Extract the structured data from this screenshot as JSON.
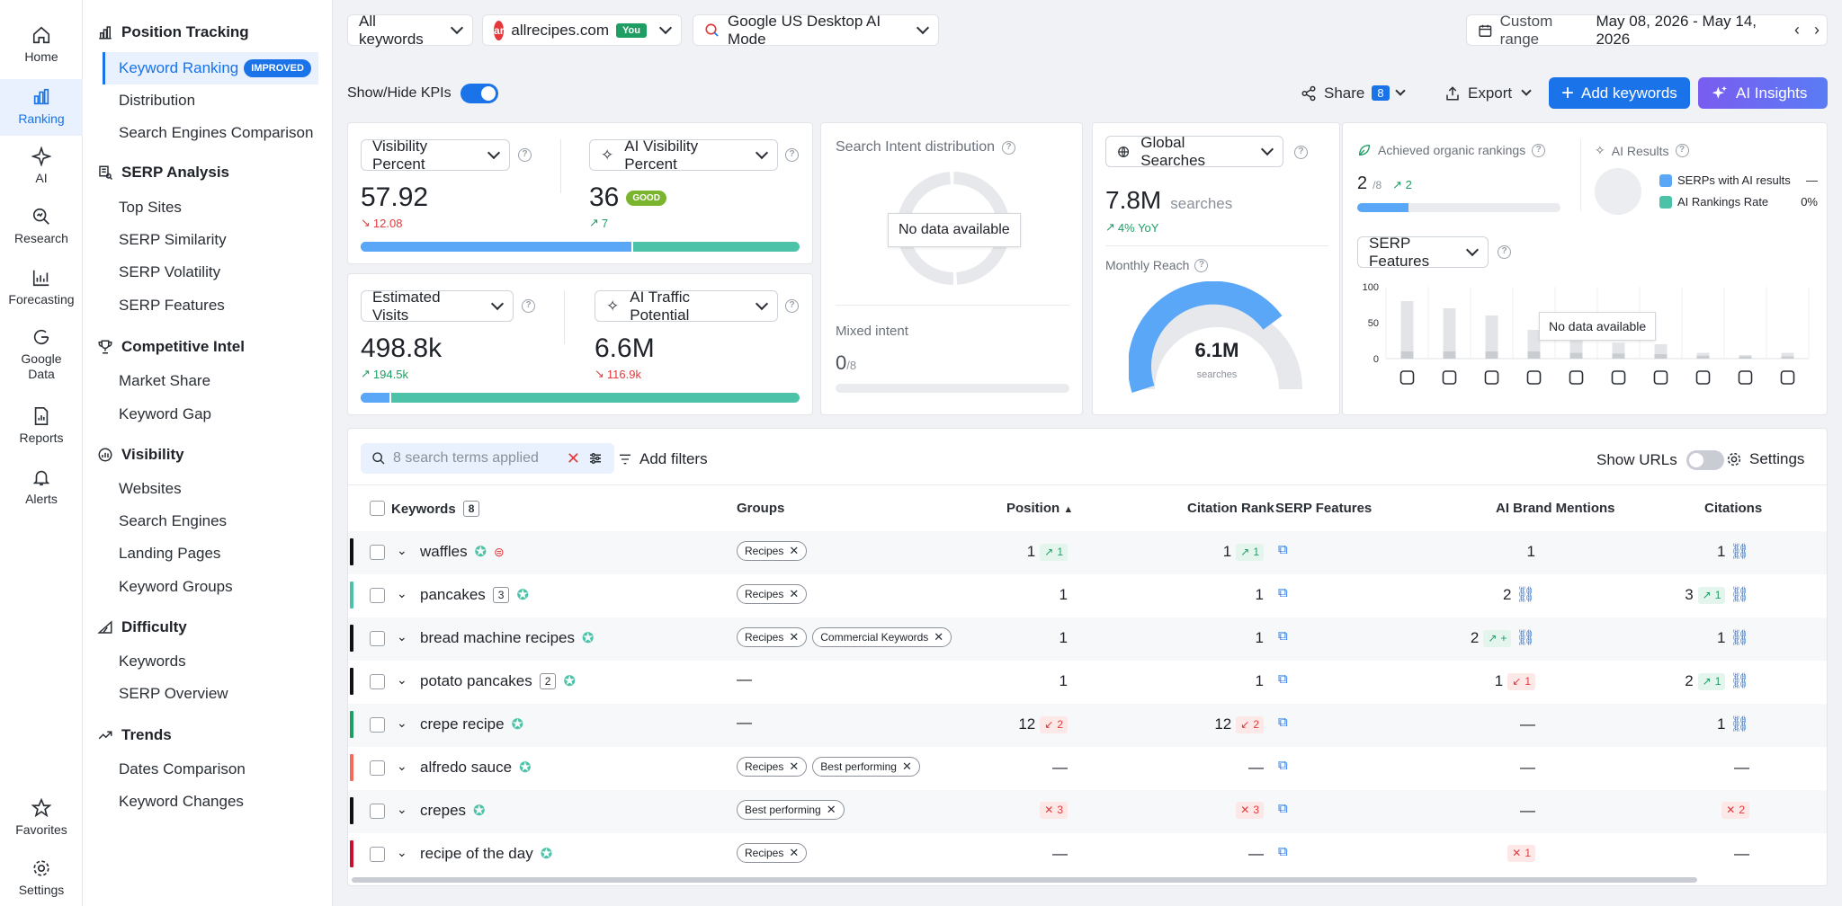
{
  "rail": [
    {
      "label": "Home",
      "icon": "home-icon"
    },
    {
      "label": "Ranking",
      "icon": "bar-chart-icon"
    },
    {
      "label": "AI",
      "icon": "sparkle-icon"
    },
    {
      "label": "Research",
      "icon": "magnify-chart-icon"
    },
    {
      "label": "Forecasting",
      "icon": "forecast-icon"
    },
    {
      "label": "Google Data",
      "icon": "google-icon"
    },
    {
      "label": "Reports",
      "icon": "report-icon"
    },
    {
      "label": "Alerts",
      "icon": "bell-icon"
    },
    {
      "label": "Favorites",
      "icon": "star-icon"
    },
    {
      "label": "Settings",
      "icon": "gear-icon"
    }
  ],
  "sidebar": {
    "position_tracking": {
      "title": "Position Tracking",
      "items": [
        "Keyword Ranking",
        "Distribution",
        "Search Engines Comparison"
      ],
      "badge": "IMPROVED"
    },
    "serp_analysis": {
      "title": "SERP Analysis",
      "items": [
        "Top Sites",
        "SERP Similarity",
        "SERP Volatility",
        "SERP Features"
      ]
    },
    "competitive": {
      "title": "Competitive Intel",
      "items": [
        "Market Share",
        "Keyword Gap"
      ]
    },
    "visibility": {
      "title": "Visibility",
      "items": [
        "Websites",
        "Search Engines",
        "Landing Pages",
        "Keyword Groups"
      ]
    },
    "difficulty": {
      "title": "Difficulty",
      "items": [
        "Keywords",
        "SERP Overview"
      ]
    },
    "trends": {
      "title": "Trends",
      "items": [
        "Dates Comparison",
        "Keyword Changes"
      ]
    }
  },
  "topbar": {
    "keywords_filter": "All keywords",
    "site": "allrecipes.com",
    "site_badge": "You",
    "site_logo": "ar",
    "engine": "Google US Desktop AI Mode",
    "range_label": "Custom range",
    "range_value": "May 08, 2026 - May 14, 2026"
  },
  "toolbar": {
    "kpi_toggle": "Show/Hide KPIs",
    "share": "Share",
    "share_count": "8",
    "export": "Export",
    "add_keywords": "Add keywords",
    "ai_insights": "AI Insights"
  },
  "kpi": {
    "visibility": {
      "label": "Visibility Percent",
      "value": "57.92",
      "delta": "12.08"
    },
    "ai_visibility": {
      "label": "AI Visibility Percent",
      "value": "36",
      "badge": "GOOD",
      "delta": "7"
    },
    "visits": {
      "label": "Estimated Visits",
      "value": "498.8k",
      "delta": "194.5k"
    },
    "ai_traffic": {
      "label": "AI Traffic Potential",
      "value": "6.6M",
      "delta": "116.9k"
    },
    "visibility_bar_fraction": 0.62,
    "visits_bar_fraction": 0.07
  },
  "intent": {
    "title": "Search Intent distribution",
    "no_data": "No data available",
    "mixed_label": "Mixed intent",
    "mixed_value": "0",
    "mixed_total": "/8"
  },
  "searches": {
    "selector": "Global Searches",
    "value": "7.8M",
    "unit": "searches",
    "yoy": "4% YoY",
    "reach_label": "Monthly Reach",
    "gauge_value": "6.1M",
    "gauge_unit": "searches"
  },
  "organic": {
    "label": "Achieved organic rankings",
    "value": "2",
    "total": "/8",
    "delta": "2",
    "ai_results_label": "AI Results",
    "legend_serps": "SERPs with AI results",
    "legend_serps_value": "—",
    "legend_rate": "AI Rankings Rate",
    "legend_rate_value": "0%",
    "colors": {
      "serps": "#5aa6f7",
      "rate": "#4cc3a8"
    }
  },
  "serp_features": {
    "selector": "SERP Features",
    "no_data": "No data available",
    "y_ticks": [
      "100",
      "50",
      "0"
    ],
    "icons": [
      "ai-overview-icon",
      "link-icon",
      "news-icon",
      "image-icon",
      "twitter-icon",
      "reviews-icon",
      "local-pin-icon",
      "carousel-icon",
      "video-icon",
      "table-icon"
    ]
  },
  "chart_data": {
    "type": "bar",
    "title": "SERP Features",
    "ylim": [
      0,
      100
    ],
    "categories": [
      "ai-overview",
      "link",
      "news",
      "image",
      "twitter",
      "reviews",
      "local-pin",
      "carousel",
      "video",
      "table"
    ],
    "series": [
      {
        "values": [
          80,
          70,
          60,
          40,
          30,
          22,
          20,
          8,
          5,
          8
        ]
      },
      {
        "values": [
          10,
          10,
          10,
          10,
          8,
          7,
          6,
          4,
          3,
          3
        ]
      }
    ]
  },
  "filters": {
    "search_terms": "8 search terms applied",
    "add_filters": "Add filters",
    "show_urls": "Show URLs",
    "settings": "Settings"
  },
  "table": {
    "headers": {
      "keywords": "Keywords",
      "keywords_count": "8",
      "groups": "Groups",
      "position": "Position",
      "citation_rank": "Citation Rank",
      "serp_features": "SERP Features",
      "brand_mentions": "AI Brand Mentions",
      "citations": "Citations"
    },
    "rows": [
      {
        "keyword": "waffles",
        "count": "",
        "color": "#111",
        "tags": [
          "Recipes"
        ],
        "pos": "1",
        "pos_chip": "1",
        "pos_dir": "up",
        "cit": "1",
        "cit_chip": "1",
        "cit_dir": "up",
        "brand": "1",
        "brand_chip": "",
        "brand_dir": "",
        "cits": "1",
        "cits_chip": "",
        "cits_dir": ""
      },
      {
        "keyword": "pancakes",
        "count": "3",
        "color": "#4cc3a8",
        "tags": [
          "Recipes"
        ],
        "pos": "1",
        "pos_chip": "",
        "pos_dir": "",
        "cit": "1",
        "cit_chip": "",
        "cit_dir": "",
        "brand": "2",
        "brand_chip": "",
        "brand_dir": "",
        "cits": "3",
        "cits_chip": "1",
        "cits_dir": "up"
      },
      {
        "keyword": "bread machine recipes",
        "count": "",
        "color": "#111",
        "tags": [
          "Recipes",
          "Commercial Keywords"
        ],
        "pos": "1",
        "pos_chip": "",
        "pos_dir": "",
        "cit": "1",
        "cit_chip": "",
        "cit_dir": "",
        "brand": "2",
        "brand_chip": "+",
        "brand_dir": "up",
        "cits": "1",
        "cits_chip": "",
        "cits_dir": ""
      },
      {
        "keyword": "potato pancakes",
        "count": "2",
        "color": "#111",
        "tags": [],
        "pos": "1",
        "pos_chip": "",
        "pos_dir": "",
        "cit": "1",
        "cit_chip": "",
        "cit_dir": "",
        "brand": "1",
        "brand_chip": "1",
        "brand_dir": "dn",
        "cits": "2",
        "cits_chip": "1",
        "cits_dir": "up"
      },
      {
        "keyword": "crepe recipe",
        "count": "",
        "color": "#1e9e63",
        "tags": [],
        "pos": "12",
        "pos_chip": "2",
        "pos_dir": "dn",
        "cit": "12",
        "cit_chip": "2",
        "cit_dir": "dn",
        "brand": "—",
        "brand_chip": "",
        "brand_dir": "",
        "cits": "1",
        "cits_chip": "",
        "cits_dir": ""
      },
      {
        "keyword": "alfredo sauce",
        "count": "",
        "color": "#f26b5b",
        "tags": [
          "Recipes",
          "Best performing"
        ],
        "pos": "—",
        "pos_chip": "",
        "pos_dir": "",
        "cit": "—",
        "cit_chip": "",
        "cit_dir": "",
        "brand": "—",
        "brand_chip": "",
        "brand_dir": "",
        "cits": "—",
        "cits_chip": "",
        "cits_dir": ""
      },
      {
        "keyword": "crepes",
        "count": "",
        "color": "#111",
        "tags": [
          "Best performing"
        ],
        "pos": "",
        "pos_chip": "3",
        "pos_dir": "x",
        "cit": "",
        "cit_chip": "3",
        "cit_dir": "x",
        "brand": "—",
        "brand_chip": "",
        "brand_dir": "",
        "cits": "",
        "cits_chip": "2",
        "cits_dir": "x"
      },
      {
        "keyword": "recipe of the day",
        "count": "",
        "color": "#c8102e",
        "tags": [
          "Recipes"
        ],
        "pos": "—",
        "pos_chip": "",
        "pos_dir": "",
        "cit": "—",
        "cit_chip": "",
        "cit_dir": "",
        "brand": "",
        "brand_chip": "1",
        "brand_dir": "x",
        "cits": "—",
        "cits_chip": "",
        "cits_dir": ""
      }
    ],
    "empty_groups": "—"
  }
}
